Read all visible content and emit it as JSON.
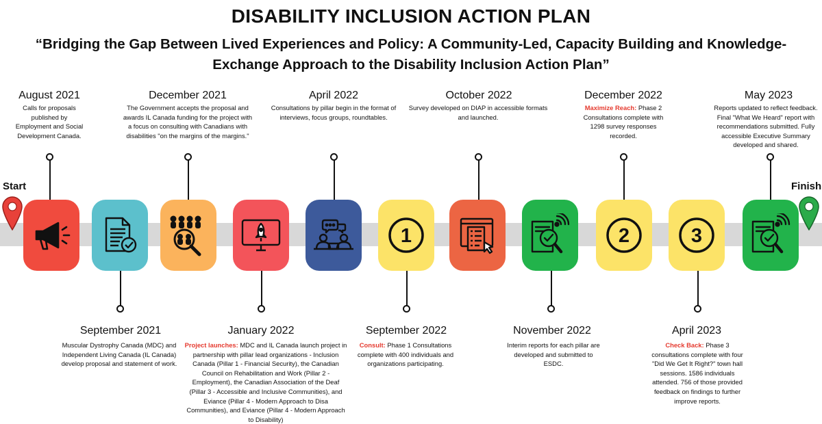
{
  "title": "DISABILITY INCLUSION ACTION PLAN",
  "subtitle": "“Bridging the Gap Between Lived Experiences and Policy: A Community-Led, Capacity Building and Knowledge-Exchange Approach to the Disability Inclusion Action Plan”",
  "start_label": "Start",
  "finish_label": "Finish",
  "colors": {
    "band": "#d8d8d8",
    "highlight": "#e53a2f"
  },
  "milestones": [
    {
      "date": "August 2021",
      "highlight": "",
      "text": "Calls for proposals published by Employment and Social Development Canada.",
      "tile_color": "#f04b3e",
      "icon": "megaphone-icon"
    },
    {
      "date": "September 2021",
      "highlight": "",
      "text": "Muscular Dystrophy Canada (MDC) and Independent Living Canada (IL Canada) develop proposal and statement of work.",
      "tile_color": "#5cc0cc",
      "icon": "document-check-icon"
    },
    {
      "date": "December 2021",
      "highlight": "",
      "text": "The Government accepts the proposal and awards IL Canada funding for the project with a focus on consulting with Canadians with disabilities \"on the margins of the margins.\"",
      "tile_color": "#fbb35c",
      "icon": "people-search-icon"
    },
    {
      "date": "January 2022",
      "highlight": "Project launches:",
      "text": " MDC and IL Canada launch project in partnership with pillar lead organizations - Inclusion Canada (Pillar 1 - Financial Security), the Canadian Council on Rehabilitation and Work (Pillar 2 - Employment), the Canadian Association of the Deaf (Pillar 3 - Accessible and Inclusive Communities), and Eviance (Pillar 4 - Modern Approach to Disa Communities), and Eviance (Pillar 4 - Modern Approach to Disability)",
      "tile_color": "#f3545a",
      "icon": "rocket-monitor-icon"
    },
    {
      "date": "April 2022",
      "highlight": "",
      "text": "Consultations by pillar begin in the format of interviews, focus groups, roundtables.",
      "tile_color": "#3d5a9b",
      "icon": "meeting-icon"
    },
    {
      "date": "September 2022",
      "highlight": "Consult:",
      "text": " Phase 1 Consultations complete with 400 individuals and organizations participating.",
      "tile_color": "#fce368",
      "icon": "number-1-icon",
      "number": "1"
    },
    {
      "date": "October 2022",
      "highlight": "",
      "text": "Survey developed on DIAP in accessible formats and launched.",
      "tile_color": "#ec6543",
      "icon": "survey-form-icon"
    },
    {
      "date": "November 2022",
      "highlight": "",
      "text": "Interim reports for each pillar are developed and submitted to ESDC.",
      "tile_color": "#22b34b",
      "icon": "report-check-icon"
    },
    {
      "date": "December 2022",
      "highlight": "Maximize Reach:",
      "text": " Phase 2 Consultations complete with 1298 survey responses recorded.",
      "tile_color": "#fce368",
      "icon": "number-2-icon",
      "number": "2"
    },
    {
      "date": "April 2023",
      "highlight": "Check Back:",
      "text": " Phase 3 consultations complete with four \"Did We Get It Right?\" town hall sessions. 1586 individuals attended. 756 of those provided feedback on findings to further improve reports.",
      "tile_color": "#fce368",
      "icon": "number-3-icon",
      "number": "3"
    },
    {
      "date": "May 2023",
      "highlight": "",
      "text": "Reports updated to reflect feedback. Final \"What We Heard\" report with recommendations submitted. Fully accessible Executive Summary developed and shared.",
      "tile_color": "#22b34b",
      "icon": "report-check-icon"
    }
  ]
}
